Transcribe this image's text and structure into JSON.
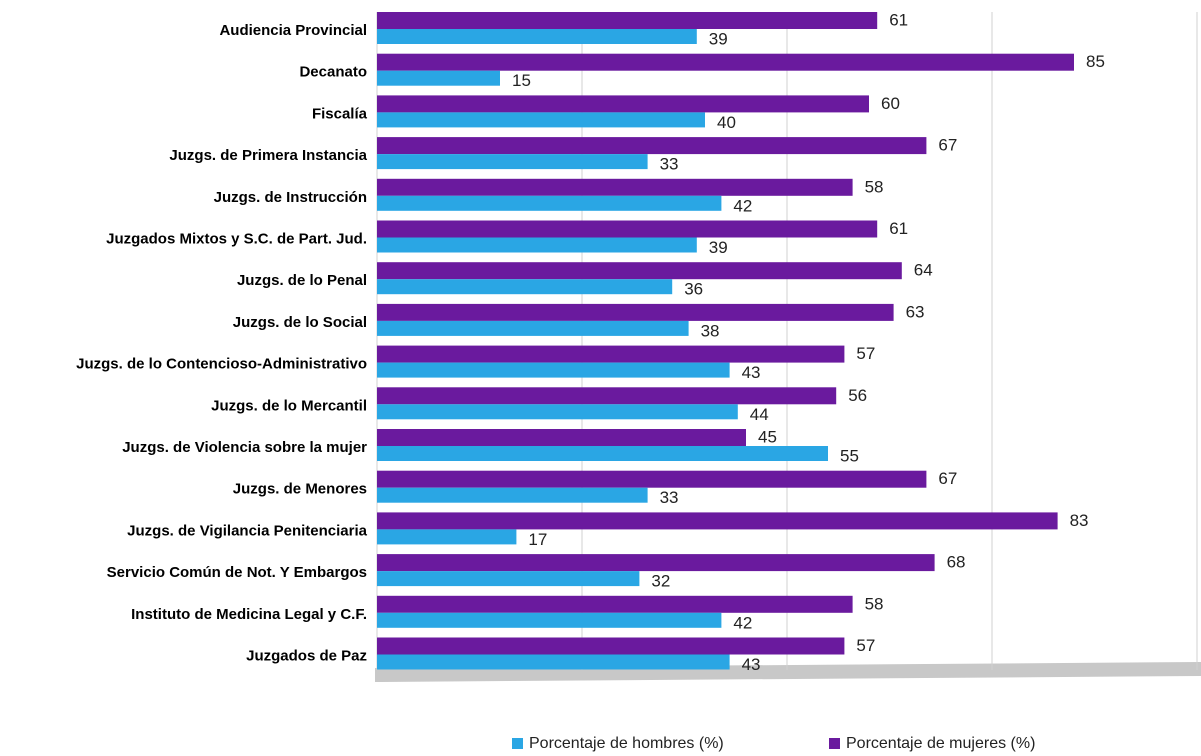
{
  "chart_data": {
    "type": "bar",
    "orientation": "horizontal",
    "categories": [
      "Audiencia Provincial",
      "Decanato",
      "Fiscalía",
      "Juzgs. de Primera Instancia",
      "Juzgs. de Instrucción",
      "Juzgados Mixtos y S.C. de Part. Jud.",
      "Juzgs. de lo Penal",
      "Juzgs. de lo Social",
      "Juzgs. de lo Contencioso-Administrativo",
      "Juzgs. de lo Mercantil",
      "Juzgs. de Violencia sobre la mujer",
      "Juzgs. de Menores",
      "Juzgs. de Vigilancia Penitenciaria",
      "Servicio Común de Not. Y Embargos",
      "Instituto de Medicina Legal y C.F.",
      "Juzgados de Paz"
    ],
    "series": [
      {
        "name": "Porcentaje de hombres (%)",
        "color": "#2aa6e4",
        "values": [
          39,
          15,
          40,
          33,
          42,
          39,
          36,
          38,
          43,
          44,
          55,
          33,
          17,
          32,
          42,
          43
        ]
      },
      {
        "name": "Porcentaje de mujeres (%)",
        "color": "#6a1a9e",
        "values": [
          61,
          85,
          60,
          67,
          58,
          61,
          64,
          63,
          57,
          56,
          45,
          67,
          83,
          68,
          58,
          57
        ]
      }
    ],
    "xlim": [
      0,
      100
    ],
    "xticks": [
      0,
      25,
      50,
      75,
      100
    ],
    "grid": true,
    "legend": "bottom"
  }
}
